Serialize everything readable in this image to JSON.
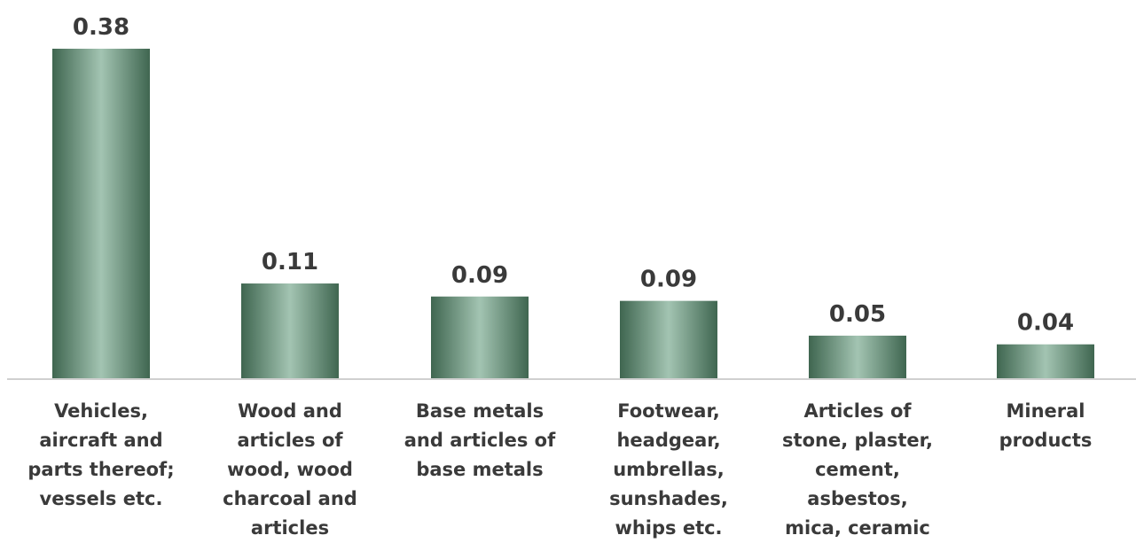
{
  "chart_data": {
    "type": "bar",
    "categories": [
      [
        "Vehicles,",
        "aircraft and",
        "parts thereof;",
        "vessels etc."
      ],
      [
        "Wood and",
        "articles of",
        "wood, wood",
        "charcoal and",
        "articles"
      ],
      [
        "Base metals",
        "and articles of",
        "base metals"
      ],
      [
        "Footwear,",
        "headgear,",
        "umbrellas,",
        "sunshades,",
        "whips etc."
      ],
      [
        "Articles of",
        "stone, plaster,",
        "cement,",
        "asbestos,",
        "mica, ceramic"
      ],
      [
        "Mineral",
        "products"
      ]
    ],
    "values": [
      0.38,
      0.11,
      0.095,
      0.09,
      0.05,
      0.04
    ],
    "data_labels": [
      "0.38",
      "0.11",
      "0.09",
      "0.09",
      "0.05",
      "0.04"
    ],
    "title": "",
    "xlabel": "",
    "ylabel": "",
    "ylim": [
      0,
      0.38
    ],
    "grid": false,
    "legend": "none",
    "colors": {
      "bar_dark": "#3f6650",
      "bar_light": "#a3c4b2",
      "axis": "#d0d0d0",
      "text": "#3a3a3a"
    }
  }
}
